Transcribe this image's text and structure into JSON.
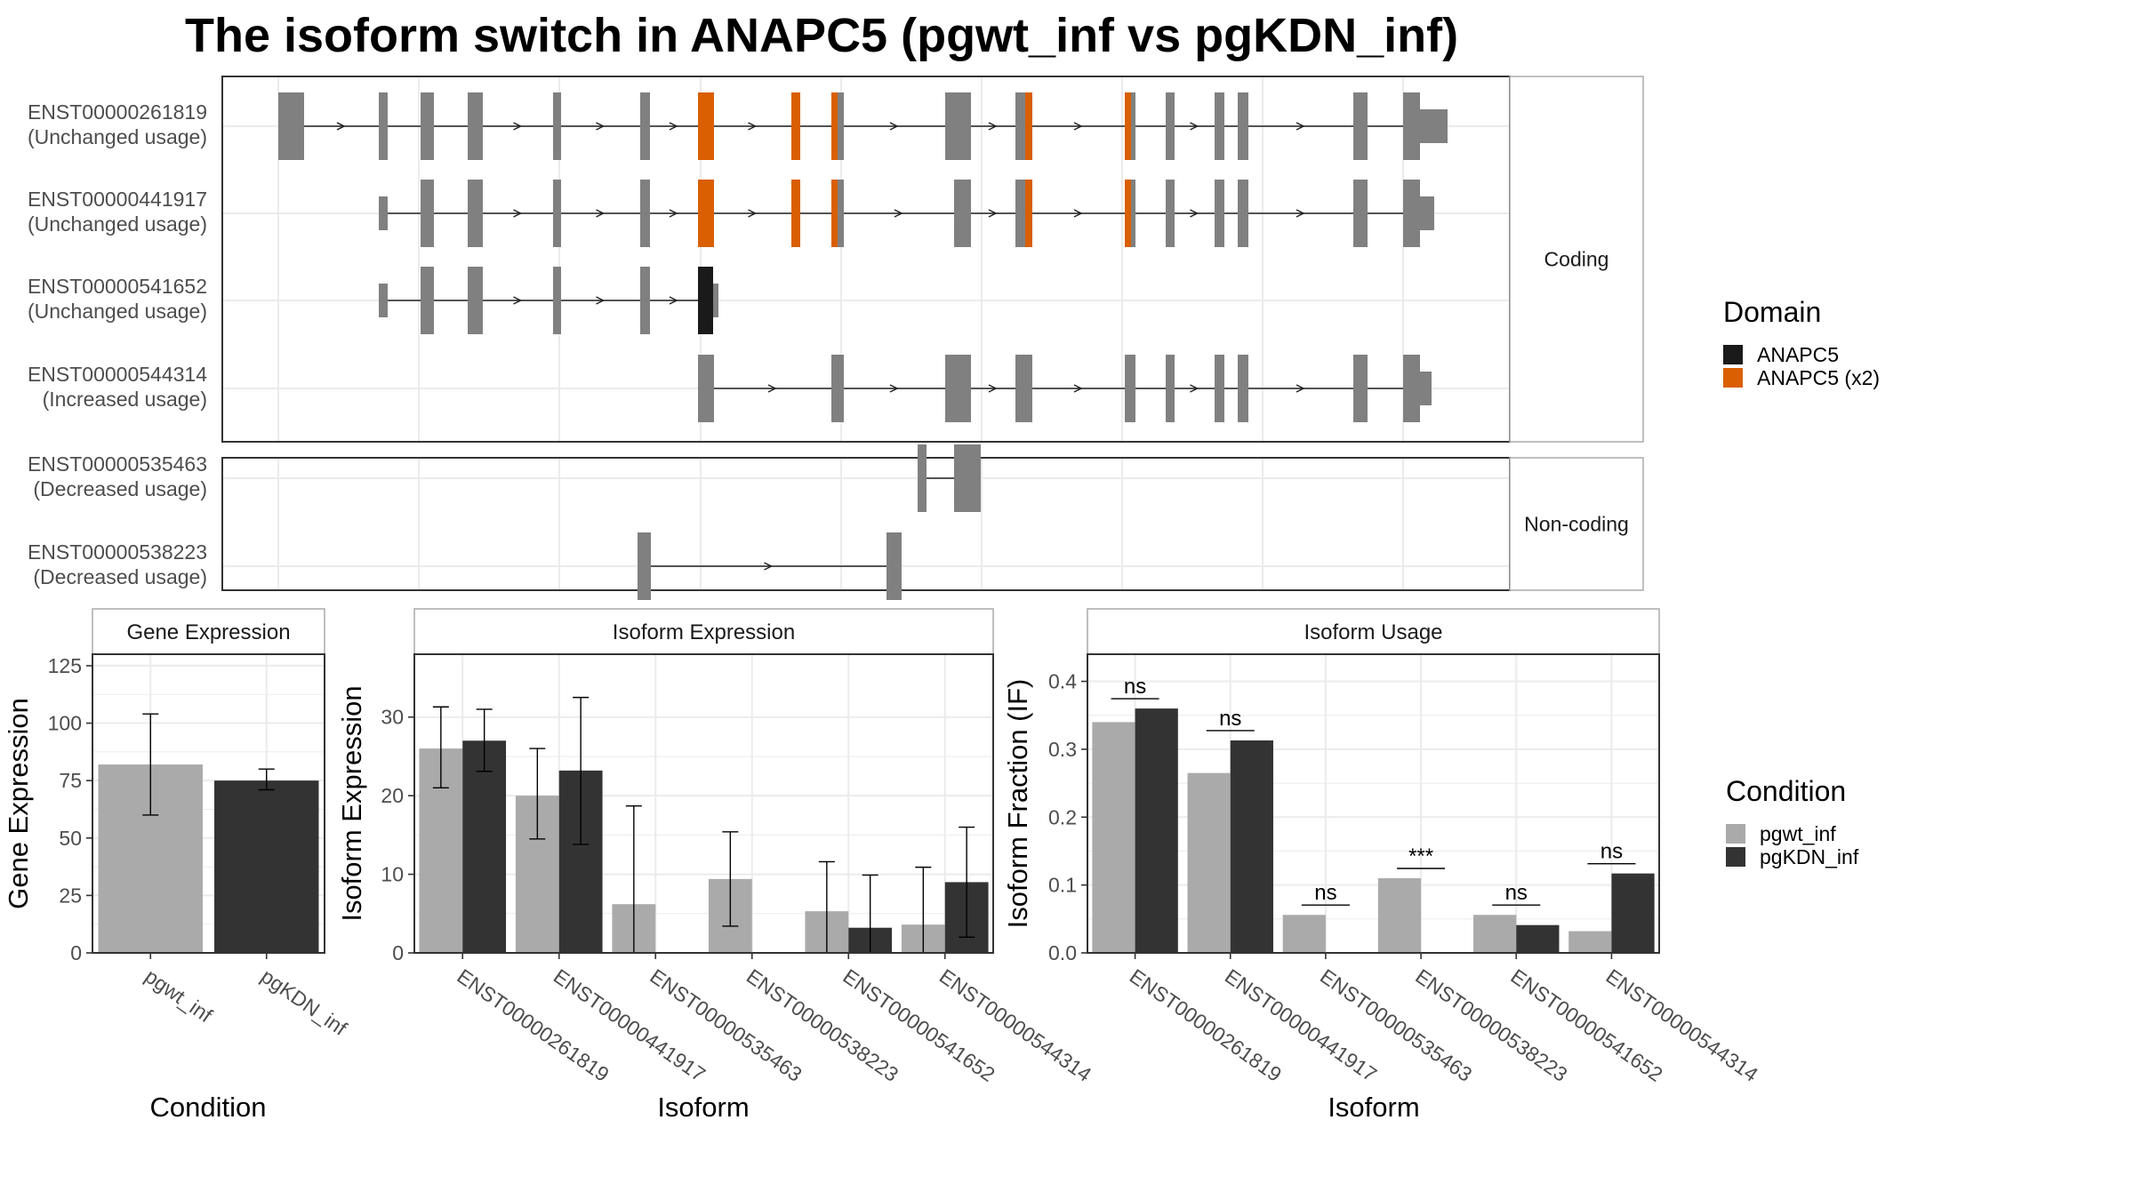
{
  "title": "The isoform switch in ANAPC5 (pgwt_inf vs pgKDN_inf)",
  "colors": {
    "exon": "#808080",
    "anapc5": "#1a1a1a",
    "anapc5_x2": "#d95f02",
    "pgwt_inf": "#aaaaaa",
    "pgKDN_inf": "#333333",
    "grid": "#ebebeb",
    "strip_bg": "#ffffff"
  },
  "structure": {
    "facets": [
      "Coding",
      "Non-coding"
    ],
    "isoforms": [
      {
        "id": "ENST00000261819",
        "usage": "(Unchanged usage)",
        "facet": "Coding"
      },
      {
        "id": "ENST00000441917",
        "usage": "(Unchanged usage)",
        "facet": "Coding"
      },
      {
        "id": "ENST00000541652",
        "usage": "(Unchanged usage)",
        "facet": "Coding"
      },
      {
        "id": "ENST00000544314",
        "usage": "(Increased usage)",
        "facet": "Coding"
      },
      {
        "id": "ENST00000535463",
        "usage": "(Decreased usage)",
        "facet": "Non-coding"
      },
      {
        "id": "ENST00000538223",
        "usage": "(Decreased usage)",
        "facet": "Non-coding"
      }
    ]
  },
  "legend_domain": {
    "title": "Domain",
    "items": [
      {
        "label": "ANAPC5",
        "color": "#1a1a1a"
      },
      {
        "label": "ANAPC5 (x2)",
        "color": "#d95f02"
      }
    ]
  },
  "legend_condition": {
    "title": "Condition",
    "items": [
      {
        "label": "pgwt_inf",
        "color": "#aaaaaa"
      },
      {
        "label": "pgKDN_inf",
        "color": "#333333"
      }
    ]
  },
  "chart_data": [
    {
      "type": "bar",
      "title": "Gene Expression",
      "xlabel": "Condition",
      "ylabel": "Gene Expression",
      "ylim": [
        0,
        130
      ],
      "yticks": [
        0,
        25,
        50,
        75,
        100,
        125
      ],
      "categories": [
        "pgwt_inf",
        "pgKDN_inf"
      ],
      "values": [
        82,
        75
      ],
      "error_low": [
        60,
        71
      ],
      "error_high": [
        104,
        80
      ]
    },
    {
      "type": "bar",
      "title": "Isoform Expression",
      "xlabel": "Isoform",
      "ylabel": "Isoform Expression",
      "ylim": [
        0,
        38
      ],
      "yticks": [
        0,
        10,
        20,
        30
      ],
      "categories": [
        "ENST00000261819",
        "ENST00000441917",
        "ENST00000535463",
        "ENST00000538223",
        "ENST00000541652",
        "ENST00000544314"
      ],
      "series": [
        {
          "name": "pgwt_inf",
          "values": [
            26,
            20,
            6.2,
            9.4,
            5.3,
            3.6
          ],
          "error_low": [
            21,
            14.5,
            0,
            3.4,
            0,
            0
          ],
          "error_high": [
            31.3,
            26,
            18.7,
            15.4,
            11.6,
            10.9
          ]
        },
        {
          "name": "pgKDN_inf",
          "values": [
            27,
            23.2,
            0,
            0,
            3.2,
            9
          ],
          "error_low": [
            23.1,
            13.8,
            0,
            0,
            0,
            2
          ],
          "error_high": [
            31,
            32.5,
            0,
            0,
            9.9,
            16
          ]
        }
      ]
    },
    {
      "type": "bar",
      "title": "Isoform Usage",
      "xlabel": "Isoform",
      "ylabel": "Isoform Fraction (IF)",
      "ylim": [
        0,
        0.44
      ],
      "yticks": [
        0.0,
        0.1,
        0.2,
        0.3,
        0.4
      ],
      "ytick_labels": [
        "0.0",
        "0.1",
        "0.2",
        "0.3",
        "0.4"
      ],
      "categories": [
        "ENST00000261819",
        "ENST00000441917",
        "ENST00000535463",
        "ENST00000538223",
        "ENST00000541652",
        "ENST00000544314"
      ],
      "series": [
        {
          "name": "pgwt_inf",
          "values": [
            0.34,
            0.265,
            0.056,
            0.11,
            0.056,
            0.032
          ]
        },
        {
          "name": "pgKDN_inf",
          "values": [
            0.36,
            0.313,
            0,
            0,
            0.041,
            0.117
          ]
        }
      ],
      "significance": [
        "ns",
        "ns",
        "ns",
        "***",
        "ns",
        "ns"
      ]
    }
  ]
}
